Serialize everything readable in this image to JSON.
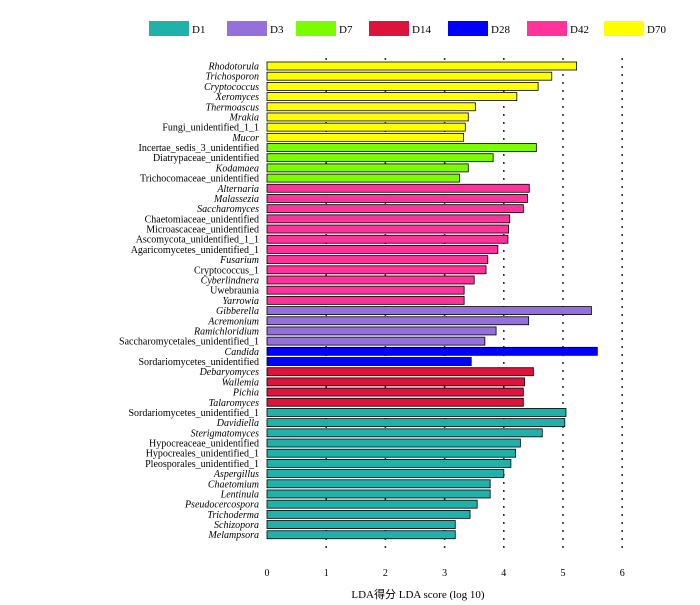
{
  "chart_data": {
    "type": "bar",
    "orientation": "horizontal",
    "title": "",
    "xlabel": "LDA得分  LDA score (log 10)",
    "ylabel": "",
    "xlim": [
      0,
      6
    ],
    "xticks": [
      "0",
      "1",
      "2",
      "3",
      "4",
      "5",
      "6"
    ],
    "grid": "dotted vertical",
    "legend_position": "top",
    "legend": [
      {
        "name": "D1",
        "color": "#20b2aa"
      },
      {
        "name": "D3",
        "color": "#9370db"
      },
      {
        "name": "D7",
        "color": "#7cfc00"
      },
      {
        "name": "D14",
        "color": "#dc143c"
      },
      {
        "name": "D28",
        "color": "#0000ff"
      },
      {
        "name": "D42",
        "color": "#ff3399"
      },
      {
        "name": "D70",
        "color": "#ffff00"
      }
    ],
    "bars": [
      {
        "label": "Rhodotorula",
        "value": 5.23,
        "group": "D70",
        "italic": true
      },
      {
        "label": "Trichosporon",
        "value": 4.81,
        "group": "D70",
        "italic": true
      },
      {
        "label": "Cryptococcus",
        "value": 4.58,
        "group": "D70",
        "italic": true
      },
      {
        "label": "Xeromyces",
        "value": 4.22,
        "group": "D70",
        "italic": true
      },
      {
        "label": "Thermoascus",
        "value": 3.52,
        "group": "D70",
        "italic": true
      },
      {
        "label": "Mrakia",
        "value": 3.4,
        "group": "D70",
        "italic": true
      },
      {
        "label": "Fungi_unidentified_1_1",
        "value": 3.35,
        "group": "D70",
        "italic": false
      },
      {
        "label": "Mucor",
        "value": 3.32,
        "group": "D70",
        "italic": true
      },
      {
        "label": "Incertae_sedis_3_unidentified",
        "value": 4.55,
        "group": "D7",
        "italic": false
      },
      {
        "label": "Diatrypaceae_unidentified",
        "value": 3.82,
        "group": "D7",
        "italic": false
      },
      {
        "label": "Kodamaea",
        "value": 3.4,
        "group": "D7",
        "italic": true
      },
      {
        "label": "Trichocomaceae_unidentified",
        "value": 3.25,
        "group": "D7",
        "italic": false
      },
      {
        "label": "Alternaria",
        "value": 4.43,
        "group": "D42",
        "italic": true
      },
      {
        "label": "Malassezia",
        "value": 4.4,
        "group": "D42",
        "italic": true
      },
      {
        "label": "Saccharomyces",
        "value": 4.33,
        "group": "D42",
        "italic": true
      },
      {
        "label": "Chaetomiaceae_unidentified",
        "value": 4.1,
        "group": "D42",
        "italic": false
      },
      {
        "label": "Microascaceae_unidentified",
        "value": 4.08,
        "group": "D42",
        "italic": false
      },
      {
        "label": "Ascomycota_unidentified_1_1",
        "value": 4.07,
        "group": "D42",
        "italic": false
      },
      {
        "label": "Agaricomycetes_unidentified_1",
        "value": 3.9,
        "group": "D42",
        "italic": false
      },
      {
        "label": "Fusarium",
        "value": 3.73,
        "group": "D42",
        "italic": true
      },
      {
        "label": "Cryptococcus_1",
        "value": 3.7,
        "group": "D42",
        "italic": false
      },
      {
        "label": "Cyberlindnera",
        "value": 3.5,
        "group": "D42",
        "italic": true
      },
      {
        "label": "Uwebraunia",
        "value": 3.33,
        "group": "D42",
        "italic": false
      },
      {
        "label": "Yarrowia",
        "value": 3.33,
        "group": "D42",
        "italic": true
      },
      {
        "label": "Gibberella",
        "value": 5.48,
        "group": "D3",
        "italic": true
      },
      {
        "label": "Acremonium",
        "value": 4.42,
        "group": "D3",
        "italic": true
      },
      {
        "label": "Ramichloridium",
        "value": 3.87,
        "group": "D3",
        "italic": true
      },
      {
        "label": "Saccharomycetales_unidentified_1",
        "value": 3.68,
        "group": "D3",
        "italic": false
      },
      {
        "label": "Candida",
        "value": 5.58,
        "group": "D28",
        "italic": true
      },
      {
        "label": "Sordariomycetes_unidentified",
        "value": 3.45,
        "group": "D28",
        "italic": false
      },
      {
        "label": "Debaryomyces",
        "value": 4.5,
        "group": "D14",
        "italic": true
      },
      {
        "label": "Wallemia",
        "value": 4.35,
        "group": "D14",
        "italic": true
      },
      {
        "label": "Pichia",
        "value": 4.33,
        "group": "D14",
        "italic": true
      },
      {
        "label": "Talaromyces",
        "value": 4.33,
        "group": "D14",
        "italic": true
      },
      {
        "label": "Sordariomycetes_unidentified_1",
        "value": 5.05,
        "group": "D1",
        "italic": false
      },
      {
        "label": "Davidiella",
        "value": 5.03,
        "group": "D1",
        "italic": true
      },
      {
        "label": "Sterigmatomyces",
        "value": 4.65,
        "group": "D1",
        "italic": true
      },
      {
        "label": "Hypocreaceae_unidentified",
        "value": 4.28,
        "group": "D1",
        "italic": false
      },
      {
        "label": "Hypocreales_unidentified_1",
        "value": 4.2,
        "group": "D1",
        "italic": false
      },
      {
        "label": "Pleosporales_unidentified_1",
        "value": 4.12,
        "group": "D1",
        "italic": false
      },
      {
        "label": "Aspergillus",
        "value": 4.0,
        "group": "D1",
        "italic": true
      },
      {
        "label": "Chaetomium",
        "value": 3.77,
        "group": "D1",
        "italic": true
      },
      {
        "label": "Lentinula",
        "value": 3.77,
        "group": "D1",
        "italic": true
      },
      {
        "label": "Pseudocercospora",
        "value": 3.55,
        "group": "D1",
        "italic": true
      },
      {
        "label": "Trichoderma",
        "value": 3.43,
        "group": "D1",
        "italic": true
      },
      {
        "label": "Schizopora",
        "value": 3.18,
        "group": "D1",
        "italic": true
      },
      {
        "label": "Melampsora",
        "value": 3.18,
        "group": "D1",
        "italic": true
      }
    ]
  }
}
